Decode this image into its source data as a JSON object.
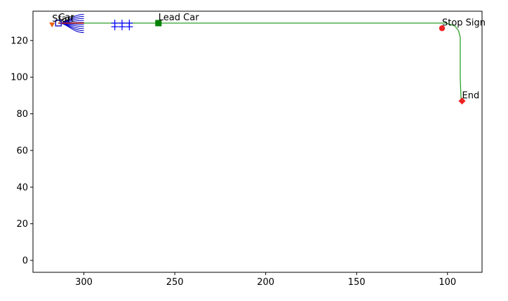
{
  "chart_data": {
    "type": "scatter",
    "title": "",
    "xlabel": "",
    "ylabel": "",
    "x_inverted": true,
    "xlim": [
      328,
      81
    ],
    "ylim": [
      -6.5,
      136
    ],
    "grid": false,
    "x_ticks": [
      300,
      250,
      200,
      150,
      100
    ],
    "y_ticks": [
      0,
      20,
      40,
      60,
      80,
      100,
      120
    ],
    "colors": {
      "path": "#2ca02c",
      "candidate_paths": "#0000cc",
      "start": "#e8620c",
      "car": "#1f1fcc",
      "lead_car": "#008000",
      "stop_sign": "#ee2222",
      "end": "#ee2222",
      "obstacles": "#0000ff"
    },
    "path": {
      "x": [
        314,
        300,
        250,
        200,
        150,
        120,
        101,
        96,
        94,
        93,
        93,
        92.5
      ],
      "y": [
        129.5,
        129.5,
        129.5,
        129.5,
        129.5,
        129.5,
        129.5,
        128,
        125.5,
        122,
        100,
        87
      ]
    },
    "candidate_paths": {
      "start": [
        314,
        129.5
      ],
      "ends": [
        [
          300,
          134.3
        ],
        [
          300,
          133.2
        ],
        [
          300,
          132.1
        ],
        [
          300,
          131
        ],
        [
          300,
          129.9
        ],
        [
          300,
          128.7
        ],
        [
          300,
          127.6
        ],
        [
          300,
          126.5
        ],
        [
          300,
          125.4
        ],
        [
          300,
          124.3
        ]
      ]
    },
    "planned_path": {
      "x": [
        314,
        308,
        300
      ],
      "y": [
        129.5,
        129.5,
        129.5
      ]
    },
    "obstacles": {
      "x": [
        283,
        283,
        279,
        279,
        275,
        275
      ],
      "y": [
        129.5,
        127.5,
        129.5,
        127.5,
        129.5,
        127.5
      ]
    },
    "markers": [
      {
        "name": "start",
        "label": "Start",
        "x": 317.5,
        "y": 128.7,
        "shape": "triangle-down"
      },
      {
        "name": "car",
        "label": "Car",
        "x": 314,
        "y": 129.5,
        "shape": "square"
      },
      {
        "name": "lead-car",
        "label": "Lead Car",
        "x": 259,
        "y": 129.5,
        "shape": "square"
      },
      {
        "name": "stop-sign",
        "label": "Stop Sign",
        "x": 103,
        "y": 126.7,
        "shape": "circle"
      },
      {
        "name": "end",
        "label": "End",
        "x": 92,
        "y": 87,
        "shape": "diamond"
      }
    ]
  }
}
